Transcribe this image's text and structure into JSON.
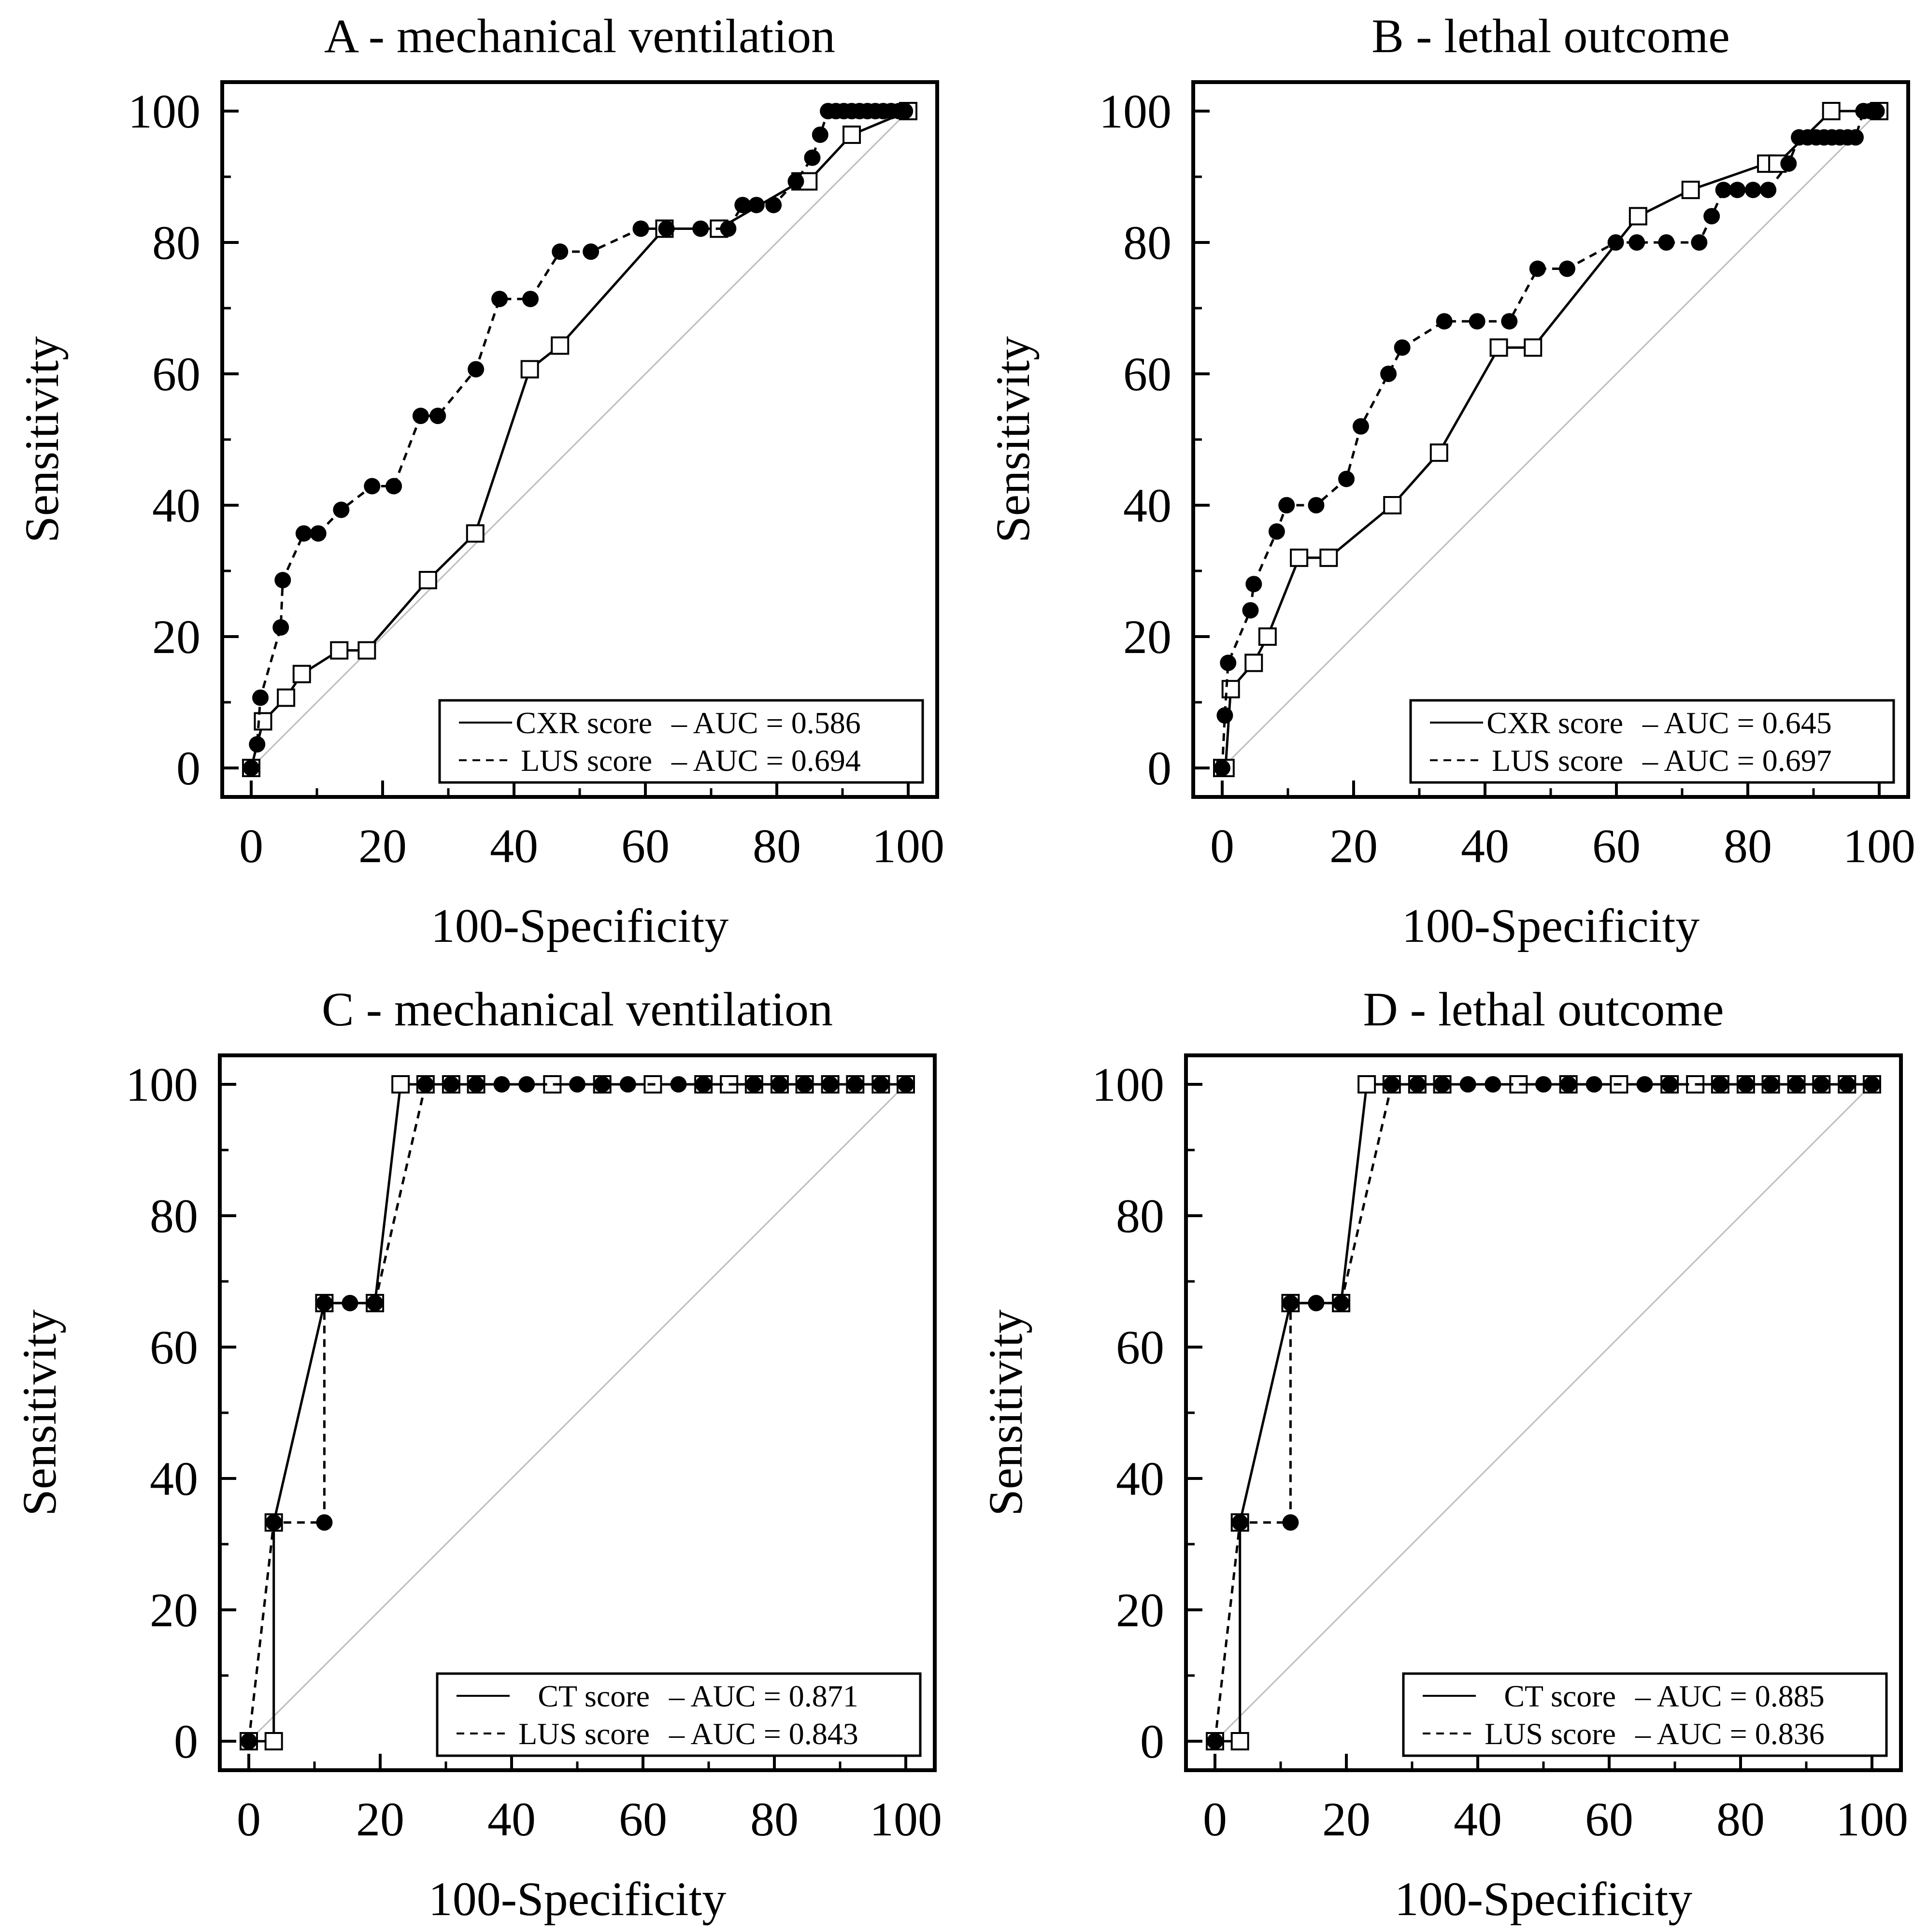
{
  "chart_data": [
    {
      "type": "line",
      "title": "A - mechanical ventilation",
      "xlabel": "100-Specificity",
      "ylabel": "Sensitivity",
      "xlim": [
        0,
        100
      ],
      "ylim": [
        0,
        100
      ],
      "xticks": [
        "0",
        "20",
        "40",
        "60",
        "80",
        "100"
      ],
      "yticks": [
        "0",
        "20",
        "40",
        "60",
        "80",
        "100"
      ],
      "grid": false,
      "legend_position": "bottom-right",
      "reference_line": true,
      "series": [
        {
          "name": "CXR score",
          "auc_label": "– AUC = 0.586",
          "line": "solid",
          "marker": "open-square",
          "x": [
            0,
            0,
            1.8,
            5.3,
            7.7,
            13.4,
            17.6,
            26.9,
            34.1,
            42.4,
            47,
            62.9,
            71.2,
            83.6,
            84.8,
            91.4,
            100
          ],
          "y": [
            0,
            0,
            7.1,
            10.7,
            14.3,
            17.9,
            17.9,
            28.6,
            35.7,
            60.7,
            64.3,
            82.1,
            82.1,
            89.3,
            89.3,
            96.4,
            100
          ]
        },
        {
          "name": "LUS score",
          "auc_label": "– AUC = 0.694",
          "line": "dashed",
          "marker": "filled-circle",
          "x": [
            0,
            0.9,
            1.4,
            4.5,
            4.8,
            8,
            10.2,
            13.7,
            18.4,
            21.7,
            25.8,
            28.4,
            34.2,
            37.8,
            42.5,
            47,
            51.7,
            59.3,
            63.2,
            68.4,
            72.6,
            74.8,
            76.9,
            79.5,
            82.9,
            85.4,
            86.6,
            87.8,
            89,
            90.2,
            91.4,
            92.6,
            93.8,
            95,
            96.2,
            97.4,
            98.6,
            99.5
          ],
          "y": [
            0,
            3.6,
            10.7,
            21.4,
            28.6,
            35.7,
            35.7,
            39.3,
            42.9,
            42.9,
            53.6,
            53.6,
            60.7,
            71.4,
            71.4,
            78.6,
            78.6,
            82.1,
            82.1,
            82.1,
            82.1,
            85.7,
            85.7,
            85.7,
            89.3,
            92.9,
            96.4,
            100,
            100,
            100,
            100,
            100,
            100,
            100,
            100,
            100,
            100,
            100
          ]
        }
      ]
    },
    {
      "type": "line",
      "title": "B - lethal outcome",
      "xlabel": "100-Specificity",
      "ylabel": "Sensitivity",
      "xlim": [
        0,
        100
      ],
      "ylim": [
        0,
        100
      ],
      "xticks": [
        "0",
        "20",
        "40",
        "60",
        "80",
        "100"
      ],
      "yticks": [
        "0",
        "20",
        "40",
        "60",
        "80",
        "100"
      ],
      "grid": false,
      "legend_position": "bottom-right",
      "reference_line": true,
      "series": [
        {
          "name": "CXR score",
          "auc_label": "– AUC = 0.645",
          "line": "solid",
          "marker": "open-square",
          "x": [
            0,
            0.5,
            1.3,
            4.8,
            6.9,
            11.7,
            16.2,
            25.9,
            33,
            42.1,
            47.3,
            63.3,
            71.3,
            82.8,
            84.5,
            92.7,
            100
          ],
          "y": [
            0,
            0,
            12,
            16,
            20,
            32,
            32,
            40,
            48,
            64,
            64,
            84,
            88,
            92,
            92,
            100,
            100
          ]
        },
        {
          "name": "LUS score",
          "auc_label": "– AUC = 0.697",
          "line": "dashed",
          "marker": "filled-circle",
          "x": [
            0,
            0.4,
            0.9,
            4.3,
            4.8,
            8.3,
            9.8,
            14.3,
            18.9,
            21.1,
            25.3,
            27.4,
            33.8,
            38.8,
            43.7,
            48,
            52.5,
            59.9,
            63.1,
            67.6,
            72.6,
            74.5,
            76.3,
            78.4,
            80.8,
            83.1,
            86.2,
            87.8,
            89.1,
            90.4,
            91.6,
            92.8,
            94,
            95.2,
            96.4,
            97.6,
            98.7,
            99.6
          ],
          "y": [
            0,
            8,
            16,
            24,
            28,
            36,
            40,
            40,
            44,
            52,
            60,
            64,
            68,
            68,
            68,
            76,
            76,
            80,
            80,
            80,
            80,
            84,
            88,
            88,
            88,
            88,
            92,
            96,
            96,
            96,
            96,
            96,
            96,
            96,
            96,
            100,
            100,
            100
          ]
        }
      ]
    },
    {
      "type": "line",
      "title": "C - mechanical ventilation",
      "xlabel": "100-Specificity",
      "ylabel": "Sensitivity",
      "xlim": [
        0,
        100
      ],
      "ylim": [
        0,
        100
      ],
      "xticks": [
        "0",
        "20",
        "40",
        "60",
        "80",
        "100"
      ],
      "yticks": [
        "0",
        "20",
        "40",
        "60",
        "80",
        "100"
      ],
      "grid": false,
      "legend_position": "bottom-right",
      "reference_line": true,
      "series": [
        {
          "name": "CT score",
          "auc_label": "– AUC = 0.871",
          "line": "solid",
          "marker": "open-square",
          "x": [
            0,
            3.8,
            3.8,
            11.5,
            19.2,
            23.1,
            26.9,
            30.8,
            34.6,
            46.2,
            53.8,
            61.5,
            69.2,
            73.1,
            76.9,
            80.8,
            84.6,
            88.5,
            92.3,
            96.2,
            100
          ],
          "y": [
            0,
            0,
            33.3,
            66.7,
            66.7,
            100,
            100,
            100,
            100,
            100,
            100,
            100,
            100,
            100,
            100,
            100,
            100,
            100,
            100,
            100,
            100
          ]
        },
        {
          "name": "LUS score",
          "auc_label": "– AUC = 0.843",
          "line": "dashed",
          "marker": "filled-circle",
          "x": [
            0,
            3.8,
            11.5,
            11.5,
            15.4,
            19.2,
            26.9,
            30.8,
            34.6,
            38.5,
            42.3,
            50,
            53.8,
            57.7,
            65.4,
            69.2,
            76.9,
            80.8,
            84.6,
            88.5,
            92.3,
            96.2,
            100
          ],
          "y": [
            0,
            33.3,
            33.3,
            66.7,
            66.7,
            66.7,
            100,
            100,
            100,
            100,
            100,
            100,
            100,
            100,
            100,
            100,
            100,
            100,
            100,
            100,
            100,
            100,
            100
          ]
        }
      ]
    },
    {
      "type": "line",
      "title": "D - lethal outcome",
      "xlabel": "100-Specificity",
      "ylabel": "Sensitivity",
      "xlim": [
        0,
        100
      ],
      "ylim": [
        0,
        100
      ],
      "xticks": [
        "0",
        "20",
        "40",
        "60",
        "80",
        "100"
      ],
      "yticks": [
        "0",
        "20",
        "40",
        "60",
        "80",
        "100"
      ],
      "grid": false,
      "legend_position": "bottom-right",
      "reference_line": true,
      "series": [
        {
          "name": "CT score",
          "auc_label": "– AUC = 0.885",
          "line": "solid",
          "marker": "open-square",
          "x": [
            0,
            3.8,
            3.8,
            11.5,
            19.2,
            23.1,
            26.9,
            30.8,
            34.6,
            46.2,
            53.8,
            61.5,
            69.2,
            73.1,
            76.9,
            80.8,
            84.6,
            88.5,
            92.3,
            96.2,
            100
          ],
          "y": [
            0,
            0,
            33.3,
            66.7,
            66.7,
            100,
            100,
            100,
            100,
            100,
            100,
            100,
            100,
            100,
            100,
            100,
            100,
            100,
            100,
            100,
            100
          ]
        },
        {
          "name": "LUS score",
          "auc_label": "– AUC = 0.836",
          "line": "dashed",
          "marker": "filled-circle",
          "x": [
            0,
            3.8,
            11.5,
            11.5,
            15.4,
            19.2,
            26.9,
            30.8,
            34.6,
            38.5,
            42.3,
            50,
            53.8,
            57.7,
            65.4,
            69.2,
            76.9,
            80.8,
            84.6,
            88.5,
            92.3,
            96.2,
            100
          ],
          "y": [
            0,
            33.3,
            33.3,
            66.7,
            66.7,
            66.7,
            100,
            100,
            100,
            100,
            100,
            100,
            100,
            100,
            100,
            100,
            100,
            100,
            100,
            100,
            100,
            100,
            100
          ]
        }
      ]
    }
  ]
}
